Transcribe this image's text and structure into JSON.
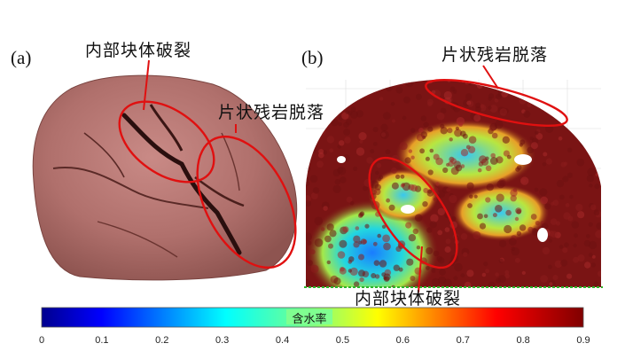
{
  "panel_a": {
    "letter": "(a)",
    "annotation_internal_fracture": "内部块体破裂",
    "annotation_flaky_debris": "片状残岩脱落"
  },
  "panel_b": {
    "letter": "(b)",
    "annotation_flaky_debris": "片状残岩脱落",
    "annotation_internal_fracture": "内部块体破裂"
  },
  "colorbar": {
    "title": "含水率",
    "ticks": [
      "0",
      "0.1",
      "0.2",
      "0.3",
      "0.4",
      "0.5",
      "0.6",
      "0.7",
      "0.8",
      "0.9"
    ],
    "range": [
      0,
      0.9
    ],
    "colormap": "jet"
  },
  "colors": {
    "annotation_outline": "#e01010",
    "rock": "#b06e6e",
    "particle_dry": "#7a1414"
  }
}
